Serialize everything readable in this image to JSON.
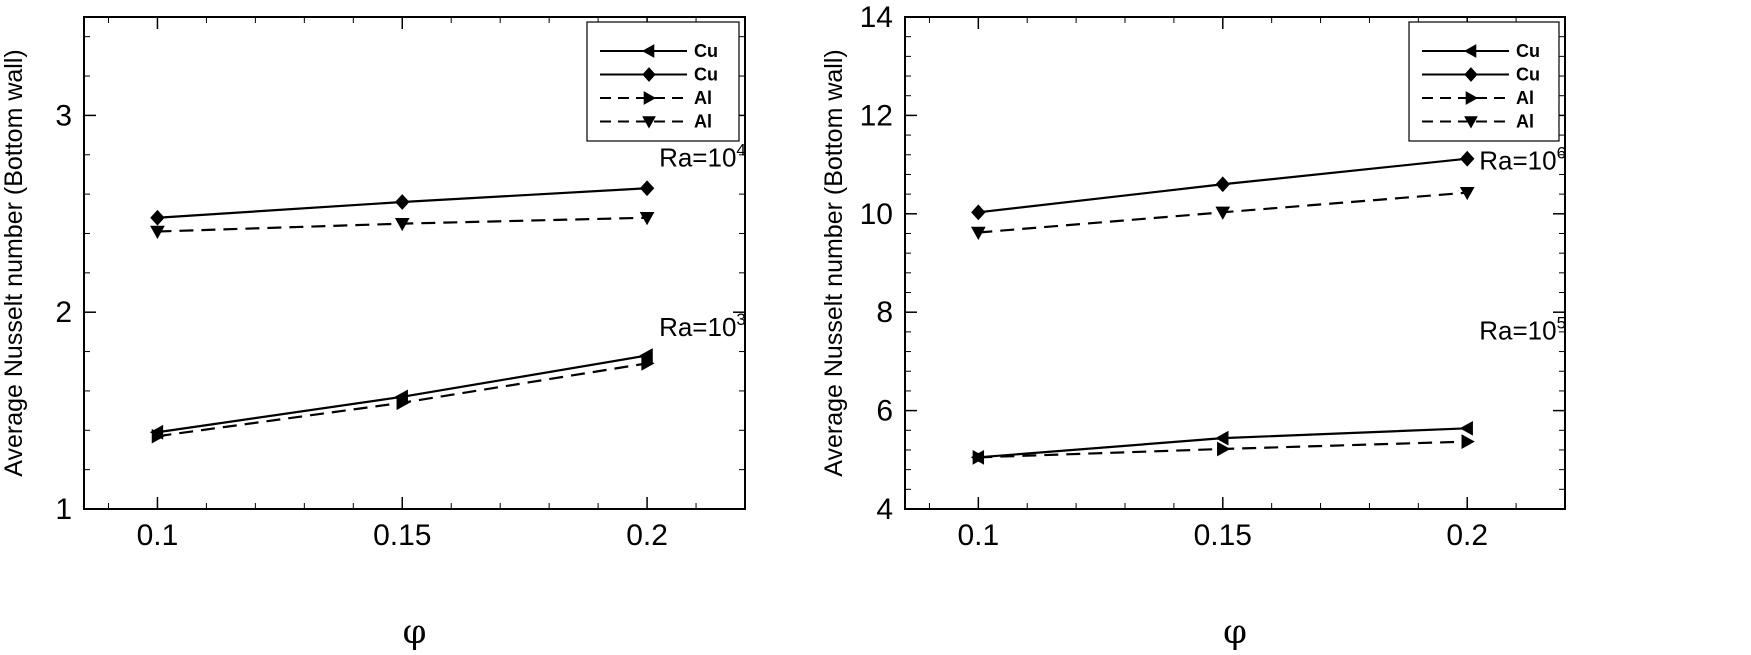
{
  "chart_data": [
    {
      "type": "line",
      "title": "",
      "xlabel": "φ",
      "ylabel": "Average Nusselt number (Bottom wall)",
      "xlim": [
        0.085,
        0.22
      ],
      "ylim": [
        1,
        3.5
      ],
      "xticks": [
        0.1,
        0.15,
        0.2
      ],
      "xtick_labels": [
        "0.1",
        "0.15",
        "0.2"
      ],
      "yticks": [
        1,
        2,
        3
      ],
      "ytick_labels": [
        "1",
        "2",
        "3"
      ],
      "legend_position": "top-right",
      "series": [
        {
          "name": "Cu",
          "group": "Ra=10^3",
          "marker": "triangle-left",
          "dash": "solid",
          "x": [
            0.1,
            0.15,
            0.2
          ],
          "values": [
            1.39,
            1.57,
            1.78
          ]
        },
        {
          "name": "Al",
          "group": "Ra=10^3",
          "marker": "triangle-right",
          "dash": "dashed",
          "x": [
            0.1,
            0.15,
            0.2
          ],
          "values": [
            1.37,
            1.54,
            1.74
          ]
        },
        {
          "name": "Cu",
          "group": "Ra=10^4",
          "marker": "diamond",
          "dash": "solid",
          "x": [
            0.1,
            0.15,
            0.2
          ],
          "values": [
            2.48,
            2.56,
            2.63
          ]
        },
        {
          "name": "Al",
          "group": "Ra=10^4",
          "marker": "triangle-down",
          "dash": "dashed",
          "x": [
            0.1,
            0.15,
            0.2
          ],
          "values": [
            2.41,
            2.45,
            2.48
          ]
        }
      ],
      "legend": [
        {
          "label": "Cu",
          "marker": "triangle-left",
          "dash": "solid"
        },
        {
          "label": "Cu",
          "marker": "diamond",
          "dash": "solid"
        },
        {
          "label": "Al",
          "marker": "triangle-right",
          "dash": "dashed"
        },
        {
          "label": "Al",
          "marker": "triangle-down",
          "dash": "dashed"
        }
      ],
      "annotations": [
        {
          "base": "Ra=10",
          "exp": "4",
          "x": 0.2,
          "y": 2.74
        },
        {
          "base": "Ra=10",
          "exp": "3",
          "x": 0.2,
          "y": 1.88
        }
      ]
    },
    {
      "type": "line",
      "title": "",
      "xlabel": "φ",
      "ylabel": "Average Nusselt number (Bottom wall)",
      "xlim": [
        0.085,
        0.22
      ],
      "ylim": [
        4,
        14
      ],
      "xticks": [
        0.1,
        0.15,
        0.2
      ],
      "xtick_labels": [
        "0.1",
        "0.15",
        "0.2"
      ],
      "yticks": [
        4,
        6,
        8,
        10,
        12,
        14
      ],
      "ytick_labels": [
        "4",
        "6",
        "8",
        "10",
        "12",
        "14"
      ],
      "legend_position": "top-right",
      "series": [
        {
          "name": "Cu",
          "group": "Ra=10^5",
          "marker": "triangle-left",
          "dash": "solid",
          "x": [
            0.1,
            0.15,
            0.2
          ],
          "values": [
            5.05,
            5.44,
            5.64
          ]
        },
        {
          "name": "Al",
          "group": "Ra=10^5",
          "marker": "triangle-right",
          "dash": "dashed",
          "x": [
            0.1,
            0.15,
            0.2
          ],
          "values": [
            5.05,
            5.22,
            5.37
          ]
        },
        {
          "name": "Cu",
          "group": "Ra=10^6",
          "marker": "diamond",
          "dash": "solid",
          "x": [
            0.1,
            0.15,
            0.2
          ],
          "values": [
            10.03,
            10.6,
            11.12
          ]
        },
        {
          "name": "Al",
          "group": "Ra=10^6",
          "marker": "triangle-down",
          "dash": "dashed",
          "x": [
            0.1,
            0.15,
            0.2
          ],
          "values": [
            9.62,
            10.03,
            10.43
          ]
        }
      ],
      "legend": [
        {
          "label": "Cu",
          "marker": "triangle-left",
          "dash": "solid"
        },
        {
          "label": "Cu",
          "marker": "diamond",
          "dash": "solid"
        },
        {
          "label": "Al",
          "marker": "triangle-right",
          "dash": "dashed"
        },
        {
          "label": "Al",
          "marker": "triangle-down",
          "dash": "dashed"
        }
      ],
      "annotations": [
        {
          "base": "Ra=10",
          "exp": "6",
          "x": 0.2,
          "y": 10.9
        },
        {
          "base": "Ra=10",
          "exp": "5",
          "x": 0.2,
          "y": 7.45
        }
      ]
    }
  ]
}
